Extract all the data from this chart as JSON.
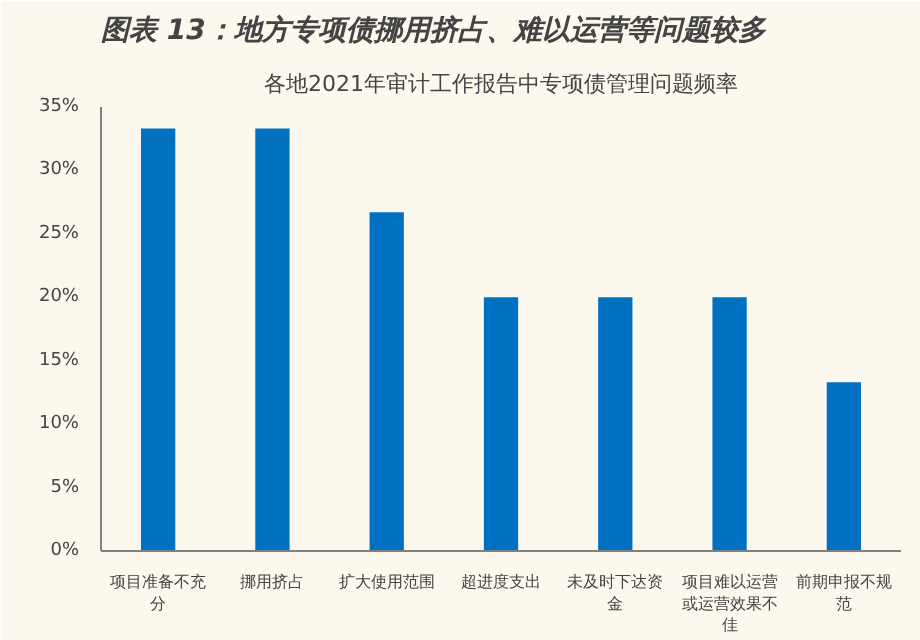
{
  "chart_data": {
    "type": "bar",
    "title": "图表 13：地方专项债挪用挤占、难以运营等问题较多",
    "subtitle": "各地2021年审计工作报告中专项债管理问题频率",
    "categories": [
      "项目准备不充分",
      "挪用挤占",
      "扩大使用范围",
      "超进度支出",
      "未及时下达资金",
      "项目难以运营或运营效果不佳",
      "前期申报不规范"
    ],
    "values": [
      33.3,
      33.3,
      26.7,
      20,
      20,
      20,
      13.3
    ],
    "color": "#0070c0",
    "ylim": [
      0,
      35
    ],
    "yticks": [
      {
        "value": 0,
        "label": "0%"
      },
      {
        "value": 5,
        "label": "5%"
      },
      {
        "value": 10,
        "label": "10%"
      },
      {
        "value": 15,
        "label": "15%"
      },
      {
        "value": 20,
        "label": "20%"
      },
      {
        "value": 25,
        "label": "25%"
      },
      {
        "value": 30,
        "label": "30%"
      },
      {
        "value": 35,
        "label": "35%"
      }
    ],
    "grid": false
  }
}
